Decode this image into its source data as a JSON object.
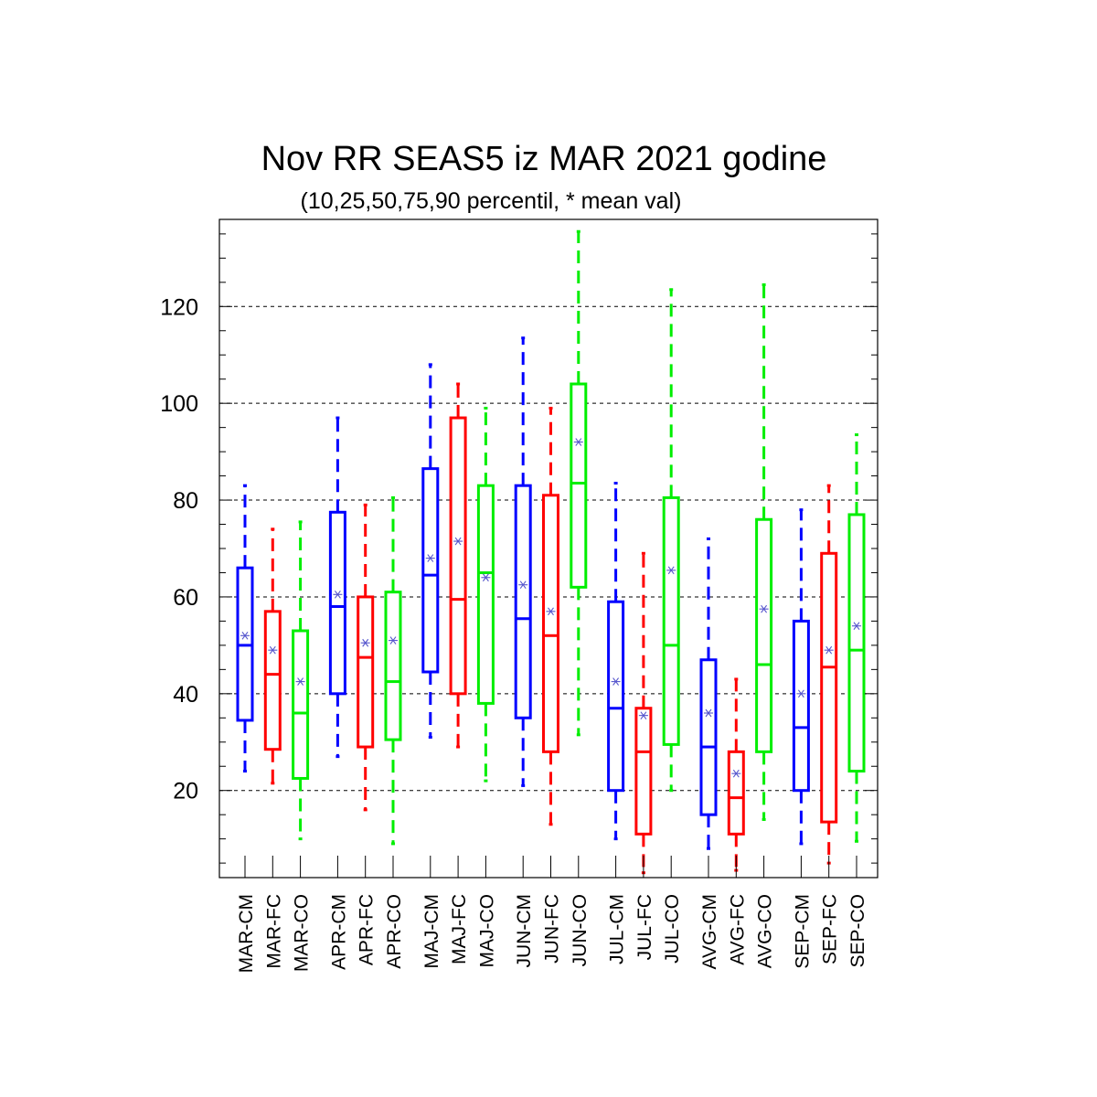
{
  "chart_data": {
    "type": "box",
    "title": "Nov RR SEAS5 iz MAR 2021 godine",
    "subtitle": "(10,25,50,75,90 percentil, * mean val)",
    "ylim": [
      2,
      138
    ],
    "yticks": [
      20,
      40,
      60,
      80,
      100,
      120
    ],
    "grid": "horizontal-dashed",
    "series_colors": {
      "CM": "#0000ff",
      "FC": "#ff0000",
      "CO": "#00ee00"
    },
    "boxes": [
      {
        "label": "MAR-CM",
        "kind": "CM",
        "p10": 24,
        "p25": 34.5,
        "p50": 50,
        "p75": 66,
        "p90": 83,
        "mean": 52
      },
      {
        "label": "MAR-FC",
        "kind": "FC",
        "p10": 21.5,
        "p25": 28.5,
        "p50": 44,
        "p75": 57,
        "p90": 74,
        "mean": 49
      },
      {
        "label": "MAR-CO",
        "kind": "CO",
        "p10": 10,
        "p25": 22.5,
        "p50": 36,
        "p75": 53,
        "p90": 75.5,
        "mean": 42.5
      },
      {
        "label": "APR-CM",
        "kind": "CM",
        "p10": 27,
        "p25": 40,
        "p50": 58,
        "p75": 77.5,
        "p90": 97,
        "mean": 60.5
      },
      {
        "label": "APR-FC",
        "kind": "FC",
        "p10": 16,
        "p25": 29,
        "p50": 47.5,
        "p75": 60,
        "p90": 79,
        "mean": 50.5
      },
      {
        "label": "APR-CO",
        "kind": "CO",
        "p10": 9,
        "p25": 30.5,
        "p50": 42.5,
        "p75": 61,
        "p90": 80.5,
        "mean": 51
      },
      {
        "label": "MAJ-CM",
        "kind": "CM",
        "p10": 31,
        "p25": 44.5,
        "p50": 64.5,
        "p75": 86.5,
        "p90": 108,
        "mean": 68
      },
      {
        "label": "MAJ-FC",
        "kind": "FC",
        "p10": 29,
        "p25": 40,
        "p50": 59.5,
        "p75": 97,
        "p90": 104,
        "mean": 71.5
      },
      {
        "label": "MAJ-CO",
        "kind": "CO",
        "p10": 22,
        "p25": 38,
        "p50": 65,
        "p75": 83,
        "p90": 99,
        "mean": 64
      },
      {
        "label": "JUN-CM",
        "kind": "CM",
        "p10": 21,
        "p25": 35,
        "p50": 55.5,
        "p75": 83,
        "p90": 113.5,
        "mean": 62.5
      },
      {
        "label": "JUN-FC",
        "kind": "FC",
        "p10": 13,
        "p25": 28,
        "p50": 52,
        "p75": 81,
        "p90": 99,
        "mean": 57
      },
      {
        "label": "JUN-CO",
        "kind": "CO",
        "p10": 31.5,
        "p25": 62,
        "p50": 83.5,
        "p75": 104,
        "p90": 135.5,
        "mean": 92
      },
      {
        "label": "JUL-CM",
        "kind": "CM",
        "p10": 10,
        "p25": 20,
        "p50": 37,
        "p75": 59,
        "p90": 83.5,
        "mean": 42.5
      },
      {
        "label": "JUL-FC",
        "kind": "FC",
        "p10": 3,
        "p25": 11,
        "p50": 28,
        "p75": 37,
        "p90": 69,
        "mean": 35.5
      },
      {
        "label": "JUL-CO",
        "kind": "CO",
        "p10": 20,
        "p25": 29.5,
        "p50": 50,
        "p75": 80.5,
        "p90": 123.5,
        "mean": 65.5
      },
      {
        "label": "AVG-CM",
        "kind": "CM",
        "p10": 8,
        "p25": 15,
        "p50": 29,
        "p75": 47,
        "p90": 72,
        "mean": 36
      },
      {
        "label": "AVG-FC",
        "kind": "FC",
        "p10": 3.5,
        "p25": 11,
        "p50": 18.5,
        "p75": 28,
        "p90": 43,
        "mean": 23.5
      },
      {
        "label": "AVG-CO",
        "kind": "CO",
        "p10": 14,
        "p25": 28,
        "p50": 46,
        "p75": 76,
        "p90": 124.5,
        "mean": 57.5
      },
      {
        "label": "SEP-CM",
        "kind": "CM",
        "p10": 9,
        "p25": 20,
        "p50": 33,
        "p75": 55,
        "p90": 78,
        "mean": 40
      },
      {
        "label": "SEP-FC",
        "kind": "FC",
        "p10": 5,
        "p25": 13.5,
        "p50": 45.5,
        "p75": 69,
        "p90": 83,
        "mean": 49
      },
      {
        "label": "SEP-CO",
        "kind": "CO",
        "p10": 9.5,
        "p25": 24,
        "p50": 49,
        "p75": 77,
        "p90": 93.5,
        "mean": 54
      }
    ]
  }
}
